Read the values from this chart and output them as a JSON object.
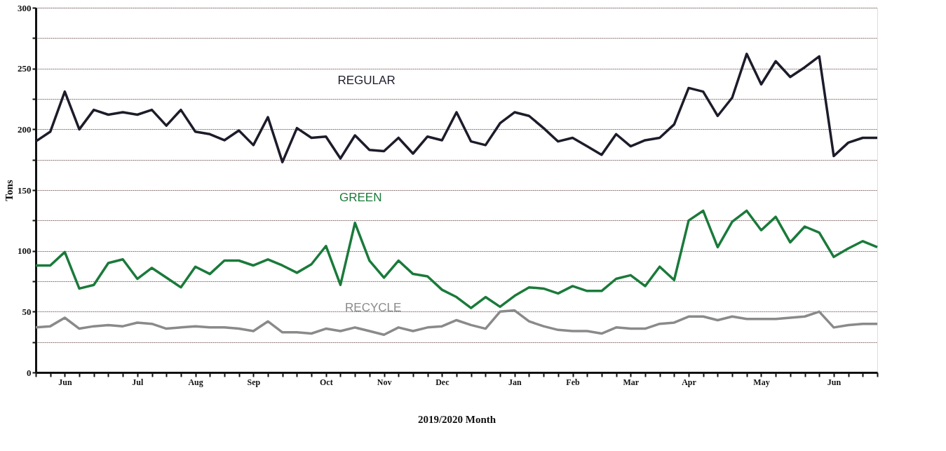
{
  "chart_data": {
    "type": "line",
    "xlabel": "2019/2020 Month",
    "ylabel": "Tons",
    "categories": [
      null,
      null,
      "Jun",
      null,
      null,
      null,
      null,
      "Jul",
      null,
      null,
      null,
      "Aug",
      null,
      null,
      null,
      "Sep",
      null,
      null,
      null,
      null,
      "Oct",
      null,
      null,
      null,
      "Nov",
      null,
      null,
      null,
      "Dec",
      null,
      null,
      null,
      null,
      "Jan",
      null,
      null,
      null,
      "Feb",
      null,
      null,
      null,
      "Mar",
      null,
      null,
      null,
      "Apr",
      null,
      null,
      null,
      null,
      "May",
      null,
      null,
      null,
      null,
      "Jun",
      null,
      null,
      null
    ],
    "series": [
      {
        "name": "REGULAR",
        "color": "#1c1c2a",
        "values": [
          190,
          198,
          231,
          200,
          216,
          212,
          214,
          212,
          216,
          203,
          216,
          198,
          196,
          191,
          199,
          187,
          210,
          173,
          201,
          193,
          194,
          176,
          195,
          183,
          182,
          193,
          180,
          194,
          191,
          214,
          190,
          187,
          205,
          214,
          211,
          201,
          190,
          193,
          186,
          179,
          196,
          186,
          191,
          193,
          204,
          234,
          231,
          211,
          226,
          262,
          237,
          256,
          243,
          251,
          260,
          178,
          189,
          193,
          193
        ]
      },
      {
        "name": "GREEN",
        "color": "#1a7a3a",
        "values": [
          88,
          88,
          99,
          69,
          72,
          90,
          93,
          77,
          86,
          78,
          70,
          87,
          81,
          92,
          92,
          88,
          93,
          88,
          82,
          89,
          104,
          72,
          123,
          92,
          78,
          92,
          81,
          79,
          68,
          62,
          53,
          62,
          54,
          63,
          70,
          69,
          65,
          71,
          67,
          67,
          77,
          80,
          71,
          87,
          76,
          125,
          133,
          103,
          124,
          133,
          117,
          128,
          107,
          120,
          115,
          95,
          102,
          108,
          103
        ]
      },
      {
        "name": "RECYCLE",
        "color": "#8a8a8a",
        "values": [
          37,
          38,
          45,
          36,
          38,
          39,
          38,
          41,
          40,
          36,
          37,
          38,
          37,
          37,
          36,
          34,
          42,
          33,
          33,
          32,
          36,
          34,
          37,
          34,
          31,
          37,
          34,
          37,
          38,
          43,
          39,
          36,
          50,
          51,
          42,
          38,
          35,
          34,
          34,
          32,
          37,
          36,
          36,
          40,
          41,
          46,
          46,
          43,
          46,
          44,
          44,
          44,
          45,
          46,
          50,
          37,
          39,
          40,
          40
        ]
      }
    ],
    "ylim": [
      0,
      300
    ],
    "yticks": [
      0,
      {
        "value": 25,
        "label": null
      },
      50,
      {
        "value": 75,
        "label": null
      },
      100,
      {
        "value": 125,
        "label": null
      },
      150,
      {
        "value": 175,
        "label": null
      },
      200,
      {
        "value": 225,
        "label": null
      },
      250,
      {
        "value": 275,
        "label": null
      },
      300
    ],
    "grid": "y",
    "legend": false,
    "marker": "none",
    "line_style": "solid"
  }
}
